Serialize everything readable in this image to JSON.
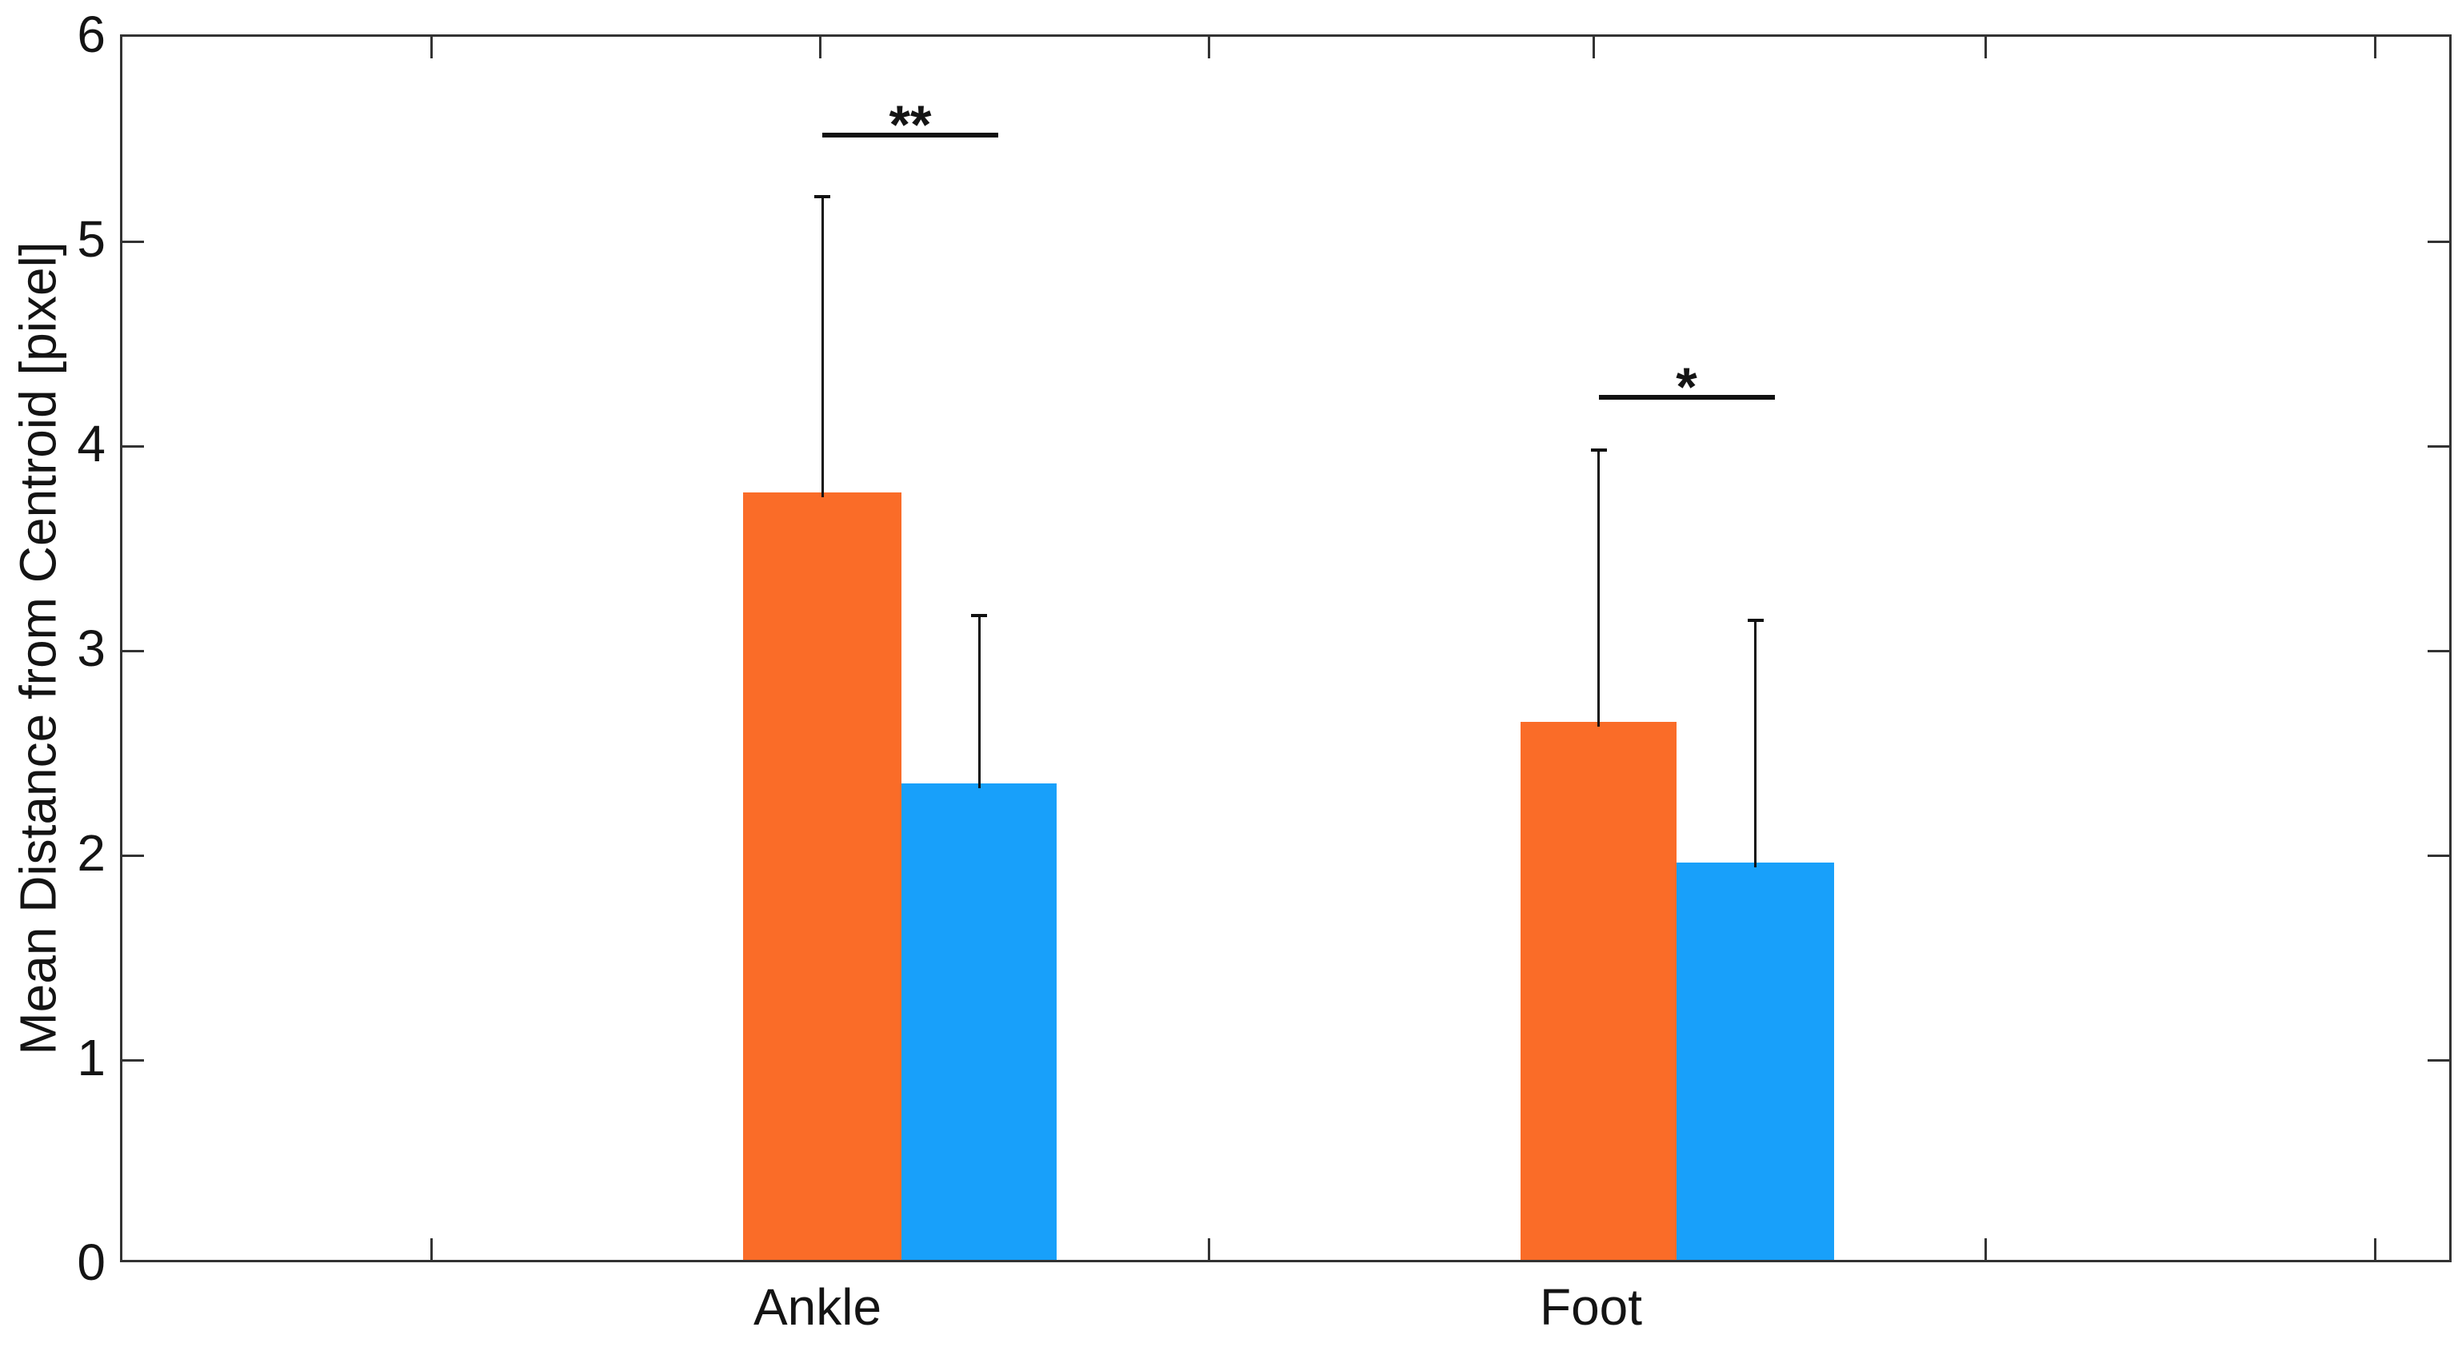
{
  "chart_data": {
    "type": "bar",
    "title": "",
    "xlabel": "",
    "ylabel": "Mean Distance from Centroid [pixel]",
    "categories": [
      "Ankle",
      "Foot"
    ],
    "series": [
      {
        "name": "orange",
        "color": "#FA6C28",
        "values": [
          3.75,
          2.63
        ],
        "error_upper": [
          1.47,
          1.35
        ]
      },
      {
        "name": "blue",
        "color": "#18A0FA",
        "values": [
          2.33,
          1.94
        ],
        "error_upper": [
          0.84,
          1.21
        ]
      }
    ],
    "ylim": [
      0,
      6
    ],
    "yticks": [
      0,
      1,
      2,
      3,
      4,
      5,
      6
    ],
    "grid": false,
    "legend": "none",
    "axis_color": "#333333",
    "text_color": "#141414",
    "errorbar_color": "#111111",
    "significance": [
      {
        "category": "Ankle",
        "label": "**",
        "line_y": 5.53
      },
      {
        "category": "Foot",
        "label": "*",
        "line_y": 4.25
      }
    ]
  }
}
